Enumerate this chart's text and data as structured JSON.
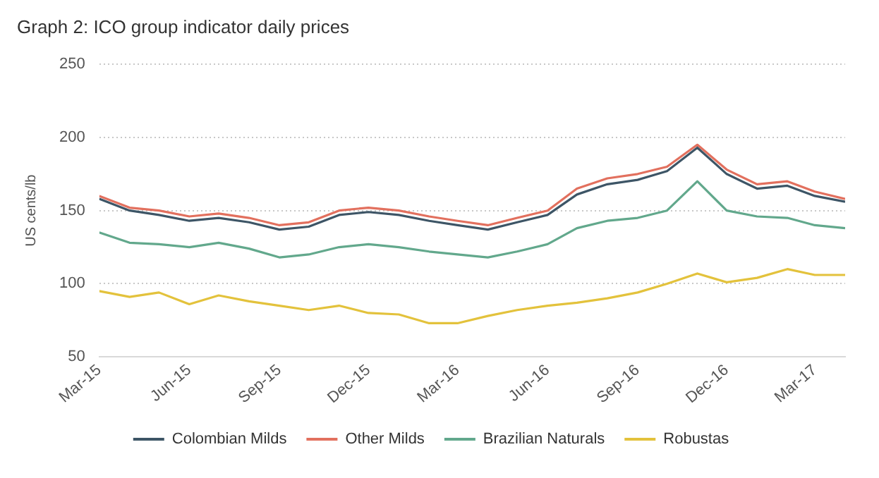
{
  "chart_data": {
    "type": "line",
    "title": "Graph 2: ICO group indicator daily prices",
    "ylabel": "US cents/lb",
    "x": [
      "2015-03",
      "2015-04",
      "2015-05",
      "2015-06",
      "2015-07",
      "2015-08",
      "2015-09",
      "2015-10",
      "2015-11",
      "2015-12",
      "2016-01",
      "2016-02",
      "2016-03",
      "2016-04",
      "2016-05",
      "2016-06",
      "2016-07",
      "2016-08",
      "2016-09",
      "2016-10",
      "2016-11",
      "2016-12",
      "2017-01",
      "2017-02",
      "2017-03",
      "2017-04"
    ],
    "series": [
      {
        "name": "Colombian Milds",
        "color": "#3d5566",
        "values": [
          158,
          150,
          147,
          143,
          145,
          142,
          137,
          139,
          147,
          149,
          147,
          143,
          140,
          137,
          142,
          147,
          161,
          168,
          171,
          177,
          193,
          175,
          165,
          167,
          160,
          156
        ]
      },
      {
        "name": "Other Milds",
        "color": "#e2705e",
        "values": [
          160,
          152,
          150,
          146,
          148,
          145,
          140,
          142,
          150,
          152,
          150,
          146,
          143,
          140,
          145,
          150,
          165,
          172,
          175,
          180,
          195,
          178,
          168,
          170,
          163,
          158
        ]
      },
      {
        "name": "Brazilian Naturals",
        "color": "#62a88c",
        "values": [
          135,
          128,
          127,
          125,
          128,
          124,
          118,
          120,
          125,
          127,
          125,
          122,
          120,
          118,
          122,
          127,
          138,
          143,
          145,
          150,
          170,
          150,
          146,
          145,
          140,
          138
        ]
      },
      {
        "name": "Robustas",
        "color": "#e3c23c",
        "values": [
          95,
          91,
          94,
          86,
          92,
          88,
          85,
          82,
          85,
          80,
          79,
          73,
          73,
          78,
          82,
          85,
          87,
          90,
          94,
          100,
          107,
          101,
          104,
          110,
          106,
          106
        ]
      }
    ],
    "xlim": [
      "2015-03",
      "2017-04"
    ],
    "xticks": [
      {
        "value": "2015-03",
        "label": "Mar-15"
      },
      {
        "value": "2015-06",
        "label": "Jun-15"
      },
      {
        "value": "2015-09",
        "label": "Sep-15"
      },
      {
        "value": "2015-12",
        "label": "Dec-15"
      },
      {
        "value": "2016-03",
        "label": "Mar-16"
      },
      {
        "value": "2016-06",
        "label": "Jun-16"
      },
      {
        "value": "2016-09",
        "label": "Sep-16"
      },
      {
        "value": "2016-12",
        "label": "Dec-16"
      },
      {
        "value": "2017-03",
        "label": "Mar-17"
      }
    ],
    "ylim": [
      50,
      250
    ],
    "yticks": [
      50,
      100,
      150,
      200,
      250
    ],
    "grid": "y",
    "legend": "bottom",
    "marker": "none",
    "line_style": "solid"
  }
}
